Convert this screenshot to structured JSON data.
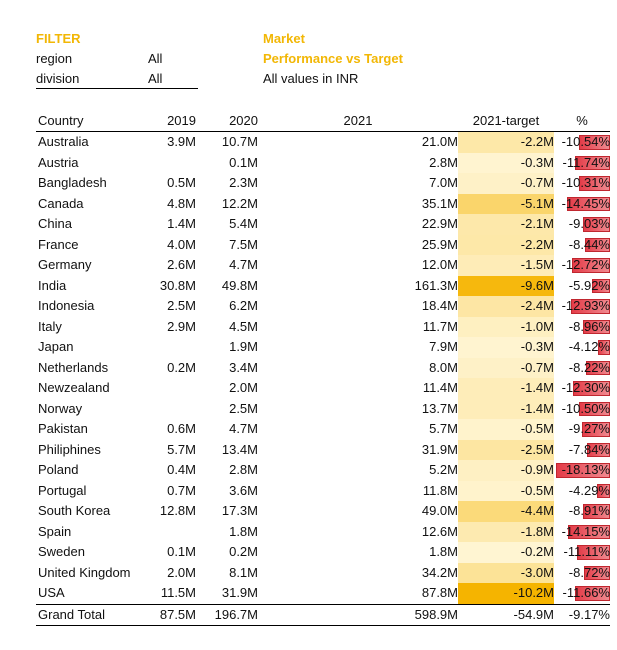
{
  "filter": {
    "title": "FILTER",
    "rows": [
      {
        "label": "region",
        "value": "All"
      },
      {
        "label": "division",
        "value": "All"
      }
    ]
  },
  "heading": {
    "line1": "Market",
    "line2": "Performance vs Target",
    "note": "All values in INR"
  },
  "colors": {
    "accent": "#f2b705",
    "target_cell_max": "#f5b400",
    "target_cell_min": "#fff6d6",
    "pct_bar": "#e43c48"
  },
  "table": {
    "columns": [
      "Country",
      "2019",
      "2020",
      "2021",
      "2021-target",
      "%"
    ],
    "rows": [
      {
        "country": "Australia",
        "y2019": "3.9M",
        "y2020": "10.7M",
        "y2021": "21.0M",
        "target": "-2.2M",
        "pct": "-10.54%",
        "target_value": -2.2,
        "pct_value": -10.54
      },
      {
        "country": "Austria",
        "y2019": "",
        "y2020": "0.1M",
        "y2021": "2.8M",
        "target": "-0.3M",
        "pct": "-11.74%",
        "target_value": -0.3,
        "pct_value": -11.74
      },
      {
        "country": "Bangladesh",
        "y2019": "0.5M",
        "y2020": "2.3M",
        "y2021": "7.0M",
        "target": "-0.7M",
        "pct": "-10.31%",
        "target_value": -0.7,
        "pct_value": -10.31
      },
      {
        "country": "Canada",
        "y2019": "4.8M",
        "y2020": "12.2M",
        "y2021": "35.1M",
        "target": "-5.1M",
        "pct": "-14.45%",
        "target_value": -5.1,
        "pct_value": -14.45
      },
      {
        "country": "China",
        "y2019": "1.4M",
        "y2020": "5.4M",
        "y2021": "22.9M",
        "target": "-2.1M",
        "pct": "-9.03%",
        "target_value": -2.1,
        "pct_value": -9.03
      },
      {
        "country": "France",
        "y2019": "4.0M",
        "y2020": "7.5M",
        "y2021": "25.9M",
        "target": "-2.2M",
        "pct": "-8.44%",
        "target_value": -2.2,
        "pct_value": -8.44
      },
      {
        "country": "Germany",
        "y2019": "2.6M",
        "y2020": "4.7M",
        "y2021": "12.0M",
        "target": "-1.5M",
        "pct": "-12.72%",
        "target_value": -1.5,
        "pct_value": -12.72
      },
      {
        "country": "India",
        "y2019": "30.8M",
        "y2020": "49.8M",
        "y2021": "161.3M",
        "target": "-9.6M",
        "pct": "-5.92%",
        "target_value": -9.6,
        "pct_value": -5.92
      },
      {
        "country": "Indonesia",
        "y2019": "2.5M",
        "y2020": "6.2M",
        "y2021": "18.4M",
        "target": "-2.4M",
        "pct": "-12.93%",
        "target_value": -2.4,
        "pct_value": -12.93
      },
      {
        "country": "Italy",
        "y2019": "2.9M",
        "y2020": "4.5M",
        "y2021": "11.7M",
        "target": "-1.0M",
        "pct": "-8.96%",
        "target_value": -1.0,
        "pct_value": -8.96
      },
      {
        "country": "Japan",
        "y2019": "",
        "y2020": "1.9M",
        "y2021": "7.9M",
        "target": "-0.3M",
        "pct": "-4.12%",
        "target_value": -0.3,
        "pct_value": -4.12
      },
      {
        "country": "Netherlands",
        "y2019": "0.2M",
        "y2020": "3.4M",
        "y2021": "8.0M",
        "target": "-0.7M",
        "pct": "-8.22%",
        "target_value": -0.7,
        "pct_value": -8.22
      },
      {
        "country": "Newzealand",
        "y2019": "",
        "y2020": "2.0M",
        "y2021": "11.4M",
        "target": "-1.4M",
        "pct": "-12.30%",
        "target_value": -1.4,
        "pct_value": -12.3
      },
      {
        "country": "Norway",
        "y2019": "",
        "y2020": "2.5M",
        "y2021": "13.7M",
        "target": "-1.4M",
        "pct": "-10.50%",
        "target_value": -1.4,
        "pct_value": -10.5
      },
      {
        "country": "Pakistan",
        "y2019": "0.6M",
        "y2020": "4.7M",
        "y2021": "5.7M",
        "target": "-0.5M",
        "pct": "-9.27%",
        "target_value": -0.5,
        "pct_value": -9.27
      },
      {
        "country": "Philiphines",
        "y2019": "5.7M",
        "y2020": "13.4M",
        "y2021": "31.9M",
        "target": "-2.5M",
        "pct": "-7.84%",
        "target_value": -2.5,
        "pct_value": -7.84
      },
      {
        "country": "Poland",
        "y2019": "0.4M",
        "y2020": "2.8M",
        "y2021": "5.2M",
        "target": "-0.9M",
        "pct": "-18.13%",
        "target_value": -0.9,
        "pct_value": -18.13
      },
      {
        "country": "Portugal",
        "y2019": "0.7M",
        "y2020": "3.6M",
        "y2021": "11.8M",
        "target": "-0.5M",
        "pct": "-4.29%",
        "target_value": -0.5,
        "pct_value": -4.29
      },
      {
        "country": "South Korea",
        "y2019": "12.8M",
        "y2020": "17.3M",
        "y2021": "49.0M",
        "target": "-4.4M",
        "pct": "-8.91%",
        "target_value": -4.4,
        "pct_value": -8.91
      },
      {
        "country": "Spain",
        "y2019": "",
        "y2020": "1.8M",
        "y2021": "12.6M",
        "target": "-1.8M",
        "pct": "-14.15%",
        "target_value": -1.8,
        "pct_value": -14.15
      },
      {
        "country": "Sweden",
        "y2019": "0.1M",
        "y2020": "0.2M",
        "y2021": "1.8M",
        "target": "-0.2M",
        "pct": "-11.11%",
        "target_value": -0.2,
        "pct_value": -11.11
      },
      {
        "country": "United Kingdom",
        "y2019": "2.0M",
        "y2020": "8.1M",
        "y2021": "34.2M",
        "target": "-3.0M",
        "pct": "-8.72%",
        "target_value": -3.0,
        "pct_value": -8.72
      },
      {
        "country": "USA",
        "y2019": "11.5M",
        "y2020": "31.9M",
        "y2021": "87.8M",
        "target": "-10.2M",
        "pct": "-11.66%",
        "target_value": -10.2,
        "pct_value": -11.66
      }
    ],
    "total": {
      "country": "Grand Total",
      "y2019": "87.5M",
      "y2020": "196.7M",
      "y2021": "598.9M",
      "target": "-54.9M",
      "pct": "-9.17%"
    }
  }
}
